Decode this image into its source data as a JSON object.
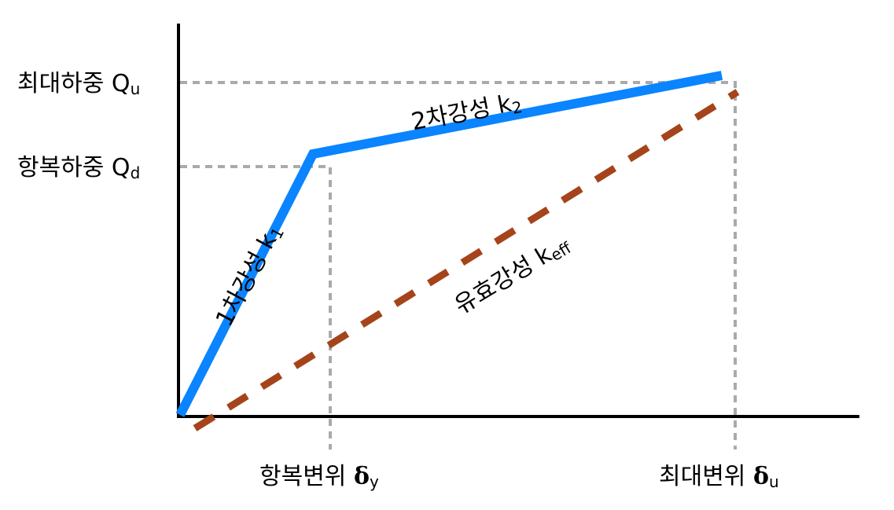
{
  "colors": {
    "primary_curve": "#0a84ff",
    "effective_line": "#a5441a",
    "guide": "#aaaaaa",
    "axis": "#000000"
  },
  "y_labels": {
    "max_load": {
      "text": "최대하중 Q",
      "sub": "u"
    },
    "yield_load": {
      "text": "항복하중 Q",
      "sub": "d"
    }
  },
  "x_labels": {
    "yield_disp": {
      "text": "항복변위 ",
      "greek": "δ",
      "sub": "y"
    },
    "max_disp": {
      "text": "최대변위 ",
      "greek": "δ",
      "sub": "u"
    }
  },
  "line_labels": {
    "k1": {
      "text": "1차강성 k",
      "sub": "1"
    },
    "k2": {
      "text": "2차강성 k",
      "sub": "2"
    },
    "keff": {
      "text": "유효강성 k",
      "sub": "eff"
    }
  }
}
